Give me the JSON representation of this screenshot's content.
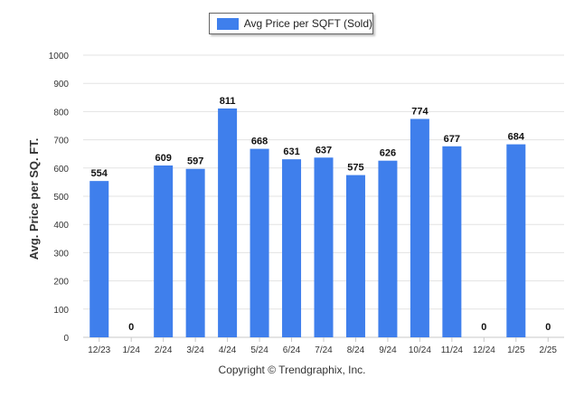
{
  "chart_data": {
    "type": "bar",
    "categories": [
      "12/23",
      "1/24",
      "2/24",
      "3/24",
      "4/24",
      "5/24",
      "6/24",
      "7/24",
      "8/24",
      "9/24",
      "10/24",
      "11/24",
      "12/24",
      "1/25",
      "2/25"
    ],
    "series": [
      {
        "name": "Avg Price per SQFT (Sold)",
        "values": [
          554,
          0,
          609,
          597,
          811,
          668,
          631,
          637,
          575,
          626,
          774,
          677,
          0,
          684,
          0
        ],
        "color": "#3f7fec"
      }
    ],
    "ylabel": "Avg. Price per SQ. FT.",
    "xlabel": "",
    "ylim": [
      0,
      1000
    ],
    "yticks": [
      0,
      100,
      200,
      300,
      400,
      500,
      600,
      700,
      800,
      900,
      1000
    ],
    "grid": true,
    "legend_position": "top-center",
    "data_labels": true
  },
  "footer": {
    "copyright": "Copyright © Trendgraphix, Inc."
  },
  "colors": {
    "bar": "#3f7fec",
    "grid": "#e3e3e3",
    "axis_text": "#333333",
    "label_text": "#111111"
  }
}
